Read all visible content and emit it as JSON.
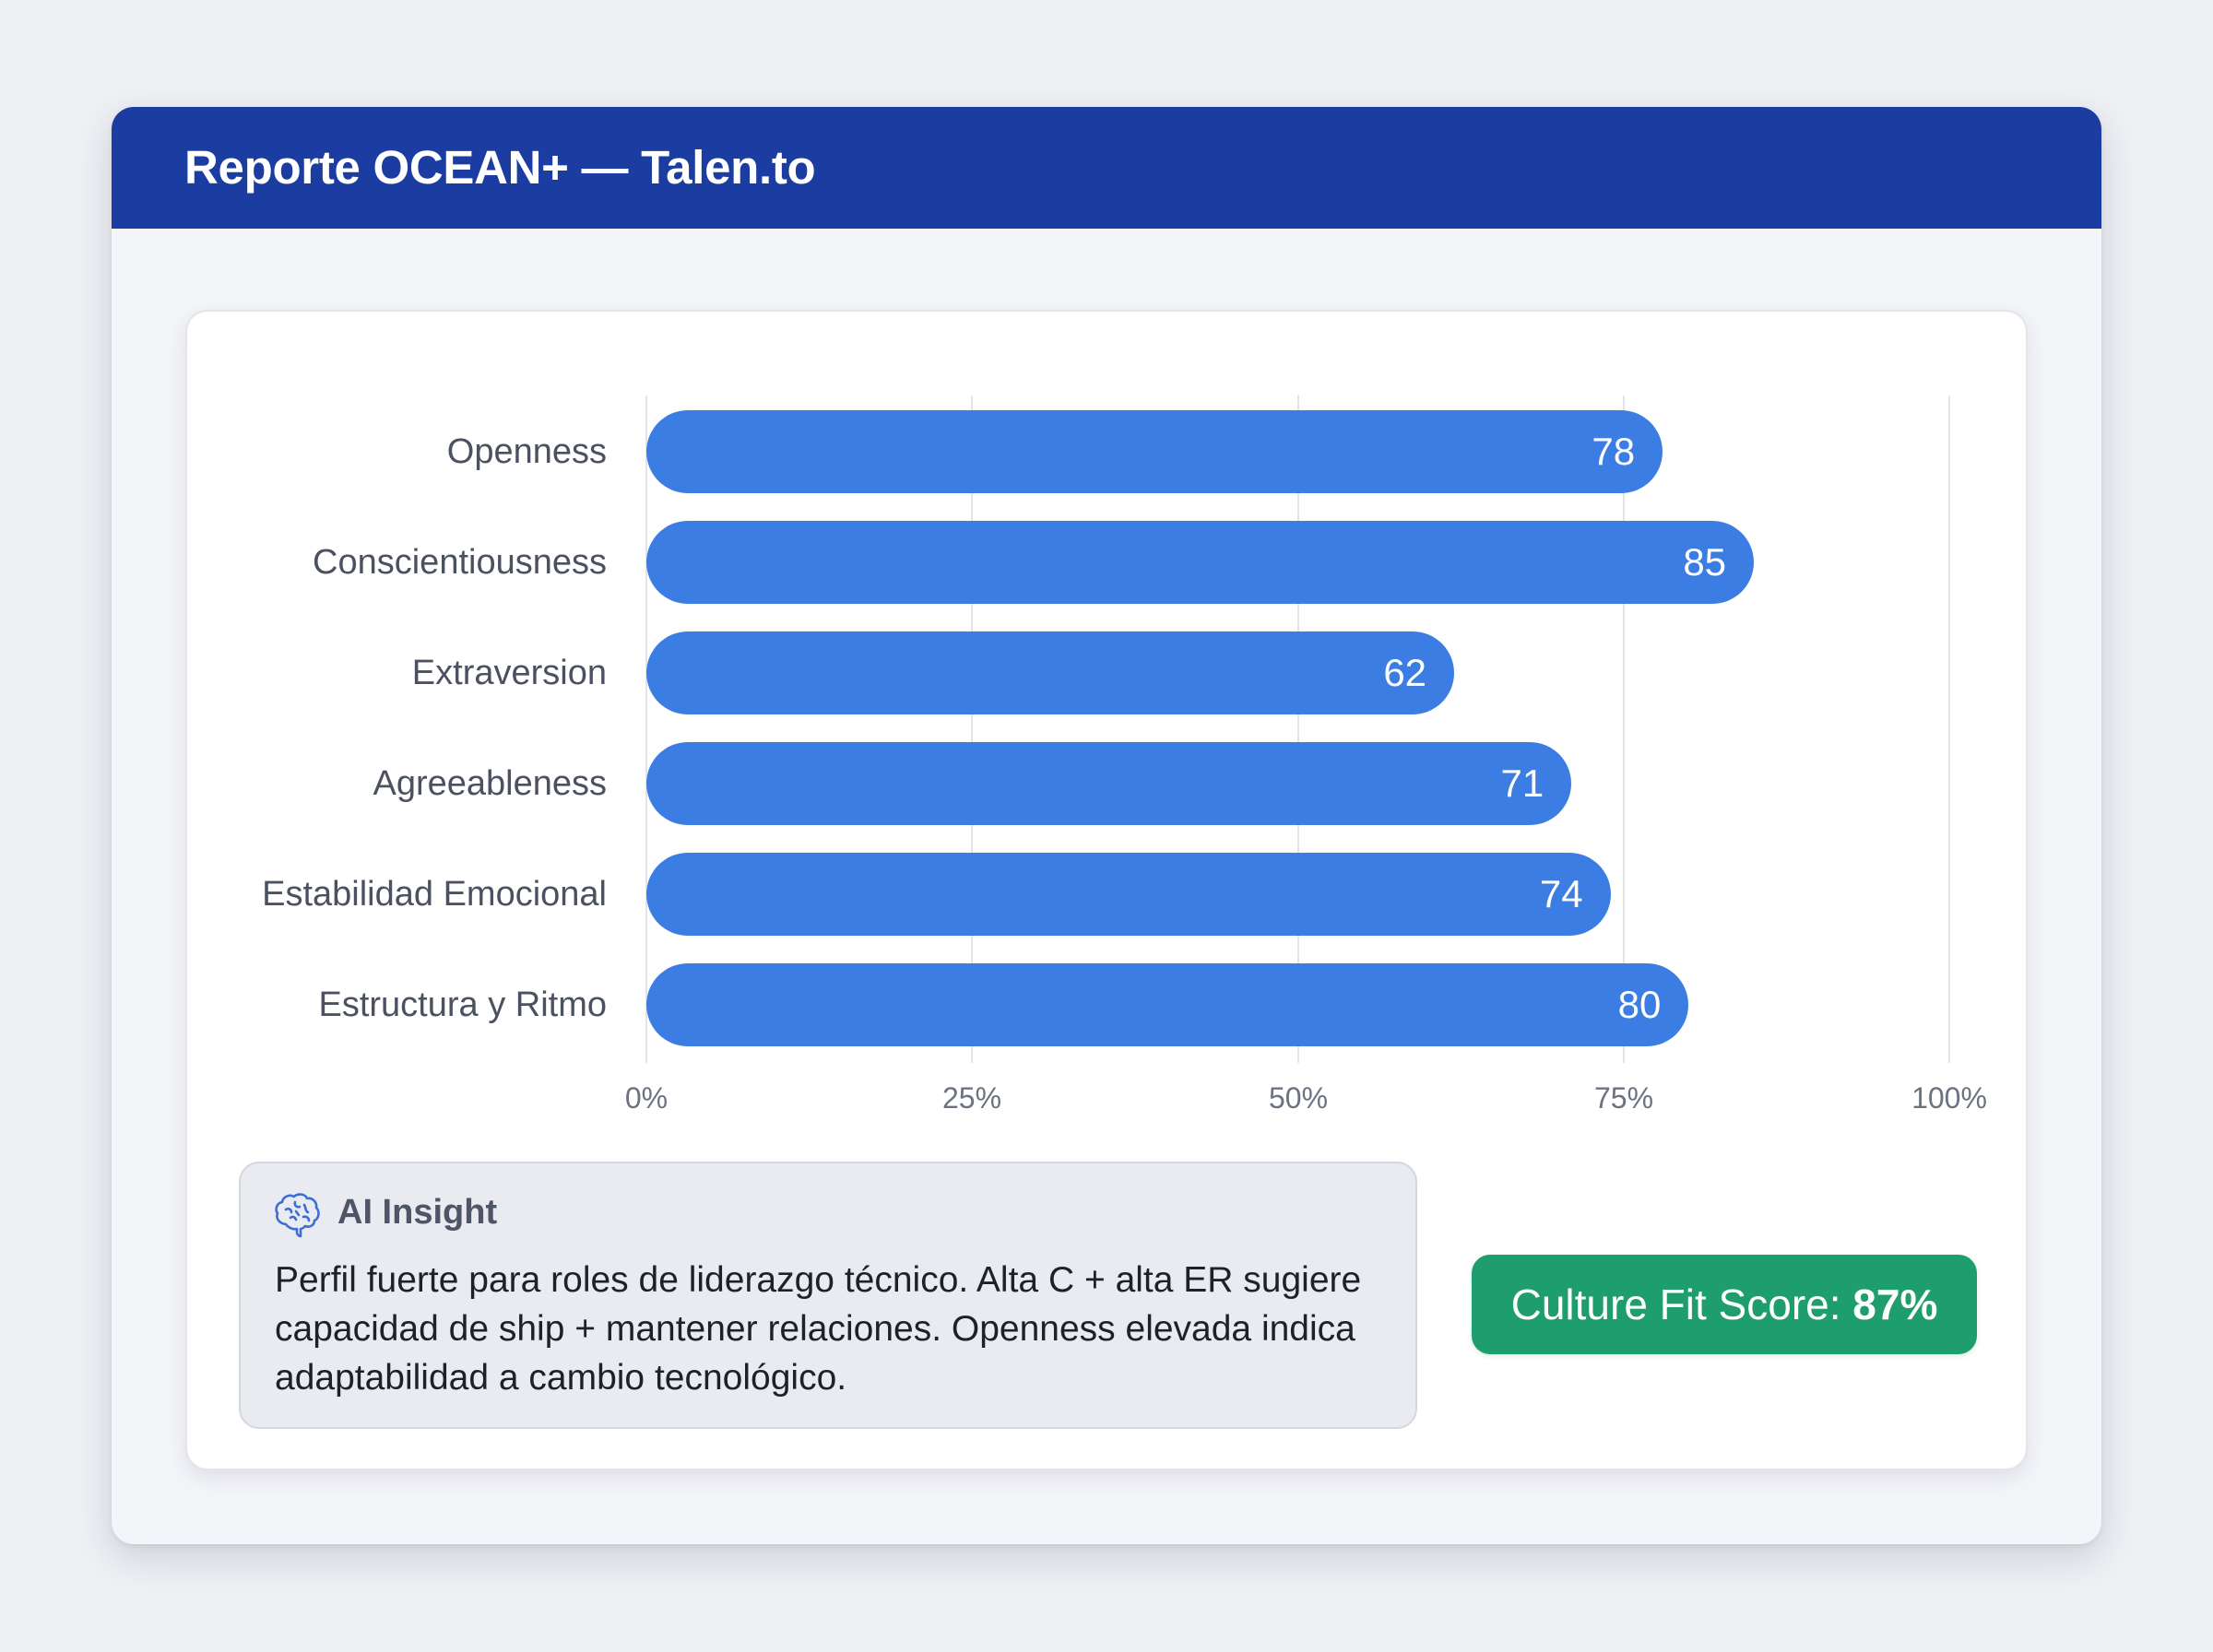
{
  "header": {
    "title": "Reporte OCEAN+ — Talen.to"
  },
  "colors": {
    "header_bg": "#1b3ca0",
    "bar": "#3b7de3",
    "badge_bg": "#1e9e6f",
    "insight_bg": "#e9ebf0",
    "icon_accent": "#3b6fd6"
  },
  "chart_data": {
    "type": "bar",
    "orientation": "horizontal",
    "title": "",
    "xlabel": "",
    "ylabel": "",
    "categories": [
      "Openness",
      "Conscientiousness",
      "Extraversion",
      "Agreeableness",
      "Estabilidad Emocional",
      "Estructura y Ritmo"
    ],
    "values": [
      78,
      85,
      62,
      71,
      74,
      80
    ],
    "value_labels": [
      "78",
      "85",
      "62",
      "71",
      "74",
      "80"
    ],
    "xlim": [
      0,
      100
    ],
    "xticks": [
      "0%",
      "25%",
      "50%",
      "75%",
      "100%"
    ],
    "grid": true,
    "legend": null
  },
  "insight": {
    "icon": "brain-icon",
    "title": "AI Insight",
    "body": "Perfil fuerte para roles de liderazgo técnico. Alta C + alta ER sugiere capacidad de ship + mantener relaciones. Openness elevada indica adaptabilidad a cambio tecnológico."
  },
  "culture_fit": {
    "label": "Culture Fit Score: ",
    "value": "87%"
  }
}
